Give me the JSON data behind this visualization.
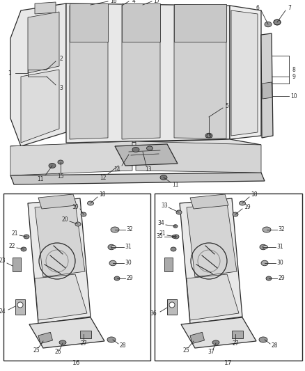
{
  "bg_color": "#ffffff",
  "line_color": "#2a2a2a",
  "fig_width": 4.39,
  "fig_height": 5.33,
  "dpi": 100
}
